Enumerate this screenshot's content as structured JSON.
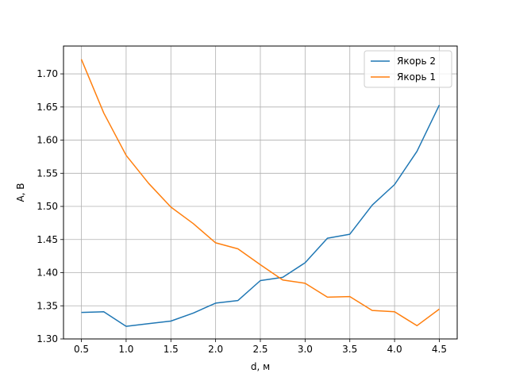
{
  "chart_data": {
    "type": "line",
    "title": "",
    "xlabel": "d, м",
    "ylabel": "A, В",
    "xlim": [
      0.3,
      4.7
    ],
    "ylim": [
      1.3,
      1.742
    ],
    "xticks": [
      0.5,
      1.0,
      1.5,
      2.0,
      2.5,
      3.0,
      3.5,
      4.0,
      4.5
    ],
    "xtick_labels": [
      "0.5",
      "1.0",
      "1.5",
      "2.0",
      "2.5",
      "3.0",
      "3.5",
      "4.0",
      "4.5"
    ],
    "yticks": [
      1.3,
      1.35,
      1.4,
      1.45,
      1.5,
      1.55,
      1.6,
      1.65,
      1.7
    ],
    "ytick_labels": [
      "1.30",
      "1.35",
      "1.40",
      "1.45",
      "1.50",
      "1.55",
      "1.60",
      "1.65",
      "1.70"
    ],
    "grid": true,
    "legend_position": "top-right",
    "x": [
      0.5,
      0.75,
      1.0,
      1.25,
      1.5,
      1.75,
      2.0,
      2.25,
      2.5,
      2.75,
      3.0,
      3.25,
      3.5,
      3.75,
      4.0,
      4.25,
      4.5
    ],
    "series": [
      {
        "name": "Якорь 2",
        "color": "#1f77b4",
        "values": [
          1.34,
          1.341,
          1.319,
          1.323,
          1.327,
          1.339,
          1.354,
          1.358,
          1.388,
          1.393,
          1.415,
          1.452,
          1.458,
          1.502,
          1.533,
          1.583,
          1.653
        ]
      },
      {
        "name": "Якорь 1",
        "color": "#ff7f0e",
        "values": [
          1.722,
          1.641,
          1.577,
          1.535,
          1.499,
          1.474,
          1.445,
          1.436,
          1.412,
          1.389,
          1.384,
          1.363,
          1.364,
          1.343,
          1.341,
          1.32,
          1.345
        ]
      }
    ]
  }
}
